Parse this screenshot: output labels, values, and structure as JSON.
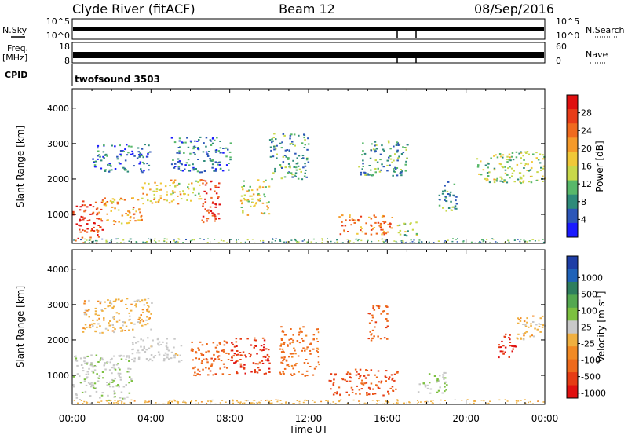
{
  "header": {
    "site": "Clyde River (fitACF)",
    "beam": "Beam 12",
    "date": "08/Sep/2016"
  },
  "top_panels": {
    "nsky_label": "N.Sky",
    "nsky_ticks": [
      "10^5",
      "10^0"
    ],
    "nsearch_label": "N.Search",
    "nsearch_ticks": [
      "10^5",
      "10^0"
    ],
    "freq_label_1": "Freq.",
    "freq_label_2": "[MHz]",
    "freq_ticks": [
      "18",
      "8"
    ],
    "nave_label": "Nave",
    "nave_ticks": [
      "60",
      "0"
    ],
    "cpid_label": "CPID",
    "cpid_value": "twofsound 3503"
  },
  "chart_data": [
    {
      "type": "heatmap",
      "title": "",
      "xlabel": "",
      "ylabel": "Slant Range [km]",
      "xlim": [
        0,
        24
      ],
      "ylim": [
        180,
        4550
      ],
      "yticks": [
        "1000",
        "2000",
        "3000",
        "4000"
      ],
      "colorbar": {
        "label": "Power [dB]",
        "ticks": [
          "4",
          "8",
          "12",
          "16",
          "20",
          "24",
          "28"
        ],
        "colors": [
          "#1a1aff",
          "#2c56b8",
          "#2e8b7a",
          "#58b86a",
          "#c8d84a",
          "#f0c838",
          "#f59a2a",
          "#f06a1e",
          "#e83c18",
          "#e01010"
        ]
      },
      "regions": [
        {
          "t": [
            0.0,
            1.5
          ],
          "r": [
            200,
            1400
          ],
          "v": 26
        },
        {
          "t": [
            1.5,
            3.5
          ],
          "r": [
            700,
            1500
          ],
          "v": 20
        },
        {
          "t": [
            3.5,
            5.5
          ],
          "r": [
            1300,
            2000
          ],
          "v": 18
        },
        {
          "t": [
            5.5,
            6.5
          ],
          "r": [
            1400,
            2000
          ],
          "v": 14
        },
        {
          "t": [
            6.5,
            7.5
          ],
          "r": [
            700,
            2000
          ],
          "v": 27
        },
        {
          "t": [
            8.5,
            10.0
          ],
          "r": [
            1000,
            2000
          ],
          "v": 16
        },
        {
          "t": [
            1.0,
            4.0
          ],
          "r": [
            2200,
            3000
          ],
          "v": 8
        },
        {
          "t": [
            5.0,
            8.0
          ],
          "r": [
            2200,
            3200
          ],
          "v": 8
        },
        {
          "t": [
            10.0,
            12.0
          ],
          "r": [
            2000,
            3300
          ],
          "v": 10
        },
        {
          "t": [
            13.5,
            16.5
          ],
          "r": [
            450,
            1000
          ],
          "v": 22
        },
        {
          "t": [
            16.5,
            17.5
          ],
          "r": [
            400,
            800
          ],
          "v": 12
        },
        {
          "t": [
            14.5,
            17.0
          ],
          "r": [
            2100,
            3100
          ],
          "v": 10
        },
        {
          "t": [
            18.5,
            19.5
          ],
          "r": [
            1100,
            2000
          ],
          "v": 10
        },
        {
          "t": [
            20.5,
            24.0
          ],
          "r": [
            1900,
            2800
          ],
          "v": 14
        }
      ]
    },
    {
      "type": "heatmap",
      "title": "",
      "xlabel": "Time UT",
      "ylabel": "Slant Range [km]",
      "xlim": [
        0,
        24
      ],
      "ylim": [
        180,
        4550
      ],
      "xticks": [
        "00:00",
        "04:00",
        "08:00",
        "12:00",
        "16:00",
        "20:00",
        "00:00"
      ],
      "yticks": [
        "1000",
        "2000",
        "3000",
        "4000"
      ],
      "colorbar": {
        "label": "Velocity [m s^-1]",
        "ticks": [
          "1000",
          "500",
          "100",
          "25",
          "-25",
          "-100",
          "-500",
          "-1000"
        ],
        "colors": [
          "#1e3ea6",
          "#1f62b8",
          "#2e7e5e",
          "#54a850",
          "#7cc040",
          "#c8c8c8",
          "#f0b040",
          "#f28a24",
          "#ee6a1c",
          "#e63c14",
          "#e01010"
        ]
      },
      "regions": [
        {
          "t": [
            0.0,
            3.0
          ],
          "r": [
            300,
            1600
          ],
          "v": 80
        },
        {
          "t": [
            3.0,
            5.5
          ],
          "r": [
            1400,
            2100
          ],
          "v": 60
        },
        {
          "t": [
            0.5,
            4.0
          ],
          "r": [
            2200,
            3200
          ],
          "v": 0
        },
        {
          "t": [
            6.0,
            8.0
          ],
          "r": [
            1000,
            2000
          ],
          "v": -200
        },
        {
          "t": [
            8.0,
            10.0
          ],
          "r": [
            1000,
            2100
          ],
          "v": -400
        },
        {
          "t": [
            10.5,
            12.5
          ],
          "r": [
            1000,
            2400
          ],
          "v": -150
        },
        {
          "t": [
            13.0,
            16.5
          ],
          "r": [
            450,
            1200
          ],
          "v": -300
        },
        {
          "t": [
            15.0,
            16.0
          ],
          "r": [
            2000,
            3000
          ],
          "v": -200
        },
        {
          "t": [
            17.5,
            19.0
          ],
          "r": [
            500,
            1100
          ],
          "v": 120
        },
        {
          "t": [
            21.5,
            22.5
          ],
          "r": [
            1500,
            2200
          ],
          "v": -500
        },
        {
          "t": [
            22.5,
            24.0
          ],
          "r": [
            2000,
            2700
          ],
          "v": 0
        }
      ]
    }
  ]
}
